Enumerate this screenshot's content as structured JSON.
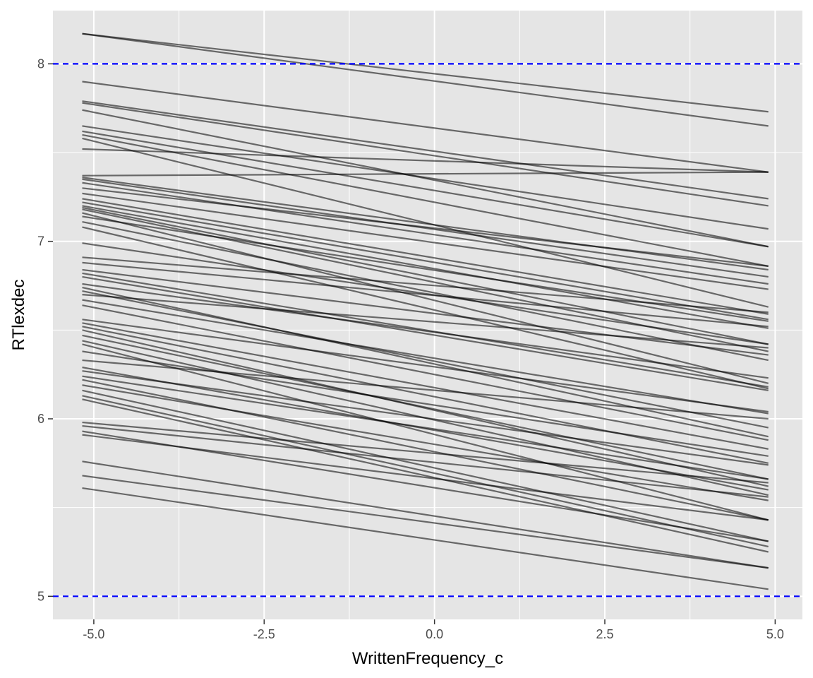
{
  "chart_data": {
    "type": "line",
    "xlabel": "WrittenFrequency_c",
    "ylabel": "RTlexdec",
    "xlim": [
      -5.6,
      5.4
    ],
    "ylim": [
      4.87,
      8.3
    ],
    "x_ticks": [
      {
        "value": -5.0,
        "label": "-5.0"
      },
      {
        "value": -2.5,
        "label": "-2.5"
      },
      {
        "value": 0.0,
        "label": "0.0"
      },
      {
        "value": 2.5,
        "label": "2.5"
      },
      {
        "value": 5.0,
        "label": "5.0"
      }
    ],
    "y_ticks": [
      {
        "value": 5,
        "label": "5"
      },
      {
        "value": 6,
        "label": "6"
      },
      {
        "value": 7,
        "label": "7"
      },
      {
        "value": 8,
        "label": "8"
      }
    ],
    "grid": true,
    "reference_lines": [
      {
        "axis": "y",
        "value": 8,
        "style": "dashed",
        "color": "#0000ff"
      },
      {
        "axis": "y",
        "value": 5,
        "style": "dashed",
        "color": "#0000ff"
      }
    ],
    "line_color": "#000000",
    "line_opacity": 0.55,
    "x_start": -5.17,
    "x_end": 4.9,
    "lines": [
      [
        8.17,
        7.73
      ],
      [
        8.17,
        7.65
      ],
      [
        7.9,
        7.39
      ],
      [
        7.79,
        7.24
      ],
      [
        7.78,
        7.2
      ],
      [
        7.74,
        6.97
      ],
      [
        7.65,
        7.07
      ],
      [
        7.62,
        6.97
      ],
      [
        7.6,
        6.86
      ],
      [
        7.58,
        6.63
      ],
      [
        7.52,
        7.39
      ],
      [
        7.37,
        7.39
      ],
      [
        7.36,
        6.84
      ],
      [
        7.35,
        6.8
      ],
      [
        7.33,
        6.76
      ],
      [
        7.3,
        6.86
      ],
      [
        7.27,
        6.73
      ],
      [
        7.24,
        6.59
      ],
      [
        7.22,
        6.56
      ],
      [
        7.2,
        6.51
      ],
      [
        7.19,
        6.42
      ],
      [
        7.18,
        6.38
      ],
      [
        7.16,
        6.2
      ],
      [
        7.14,
        6.55
      ],
      [
        7.11,
        6.33
      ],
      [
        7.08,
        6.17
      ],
      [
        6.99,
        6.42
      ],
      [
        6.91,
        6.6
      ],
      [
        6.88,
        6.52
      ],
      [
        6.84,
        6.36
      ],
      [
        6.82,
        6.18
      ],
      [
        6.8,
        6.16
      ],
      [
        6.76,
        6.23
      ],
      [
        6.74,
        5.9
      ],
      [
        6.72,
        5.95
      ],
      [
        6.7,
        6.4
      ],
      [
        6.67,
        6.03
      ],
      [
        6.64,
        5.88
      ],
      [
        6.56,
        6.04
      ],
      [
        6.54,
        5.83
      ],
      [
        6.52,
        5.75
      ],
      [
        6.5,
        5.62
      ],
      [
        6.47,
        5.66
      ],
      [
        6.44,
        5.57
      ],
      [
        6.42,
        5.43
      ],
      [
        6.38,
        5.79
      ],
      [
        6.33,
        6.0
      ],
      [
        6.29,
        5.6
      ],
      [
        6.27,
        5.74
      ],
      [
        6.24,
        5.66
      ],
      [
        6.22,
        5.43
      ],
      [
        6.19,
        5.54
      ],
      [
        6.16,
        5.31
      ],
      [
        6.13,
        5.28
      ],
      [
        6.11,
        5.25
      ],
      [
        5.98,
        5.64
      ],
      [
        5.96,
        5.56
      ],
      [
        5.93,
        5.31
      ],
      [
        5.91,
        5.43
      ],
      [
        5.76,
        5.16
      ],
      [
        5.68,
        5.16
      ],
      [
        5.61,
        5.04
      ]
    ]
  }
}
